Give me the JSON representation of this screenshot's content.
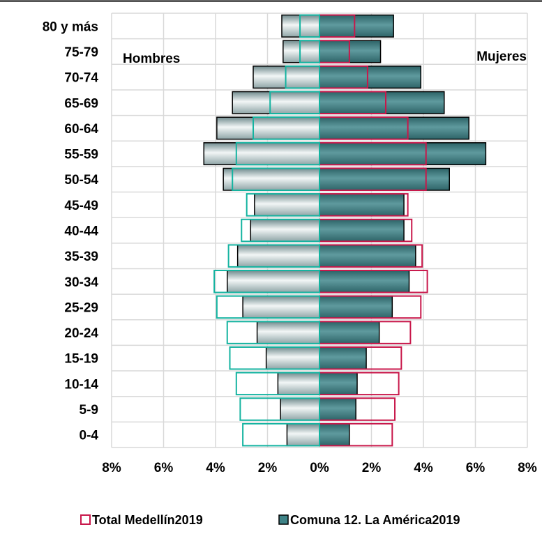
{
  "chart_data": {
    "type": "bar",
    "orientation": "horizontal",
    "categories": [
      "0-4",
      "5-9",
      "10-14",
      "15-19",
      "20-24",
      "25-29",
      "30-34",
      "35-39",
      "40-44",
      "45-49",
      "50-54",
      "55-59",
      "60-64",
      "65-69",
      "70-74",
      "75-79",
      "80 y más"
    ],
    "series": [
      {
        "name": "Total Medellín2019",
        "style": "outline",
        "male": [
          2.95,
          3.05,
          3.2,
          3.45,
          3.55,
          3.95,
          4.05,
          3.5,
          3.0,
          2.8,
          3.35,
          3.2,
          2.55,
          1.9,
          1.3,
          0.75,
          0.75
        ],
        "female": [
          2.8,
          2.9,
          3.05,
          3.15,
          3.5,
          3.9,
          4.15,
          3.95,
          3.55,
          3.4,
          4.1,
          4.1,
          3.4,
          2.55,
          1.85,
          1.15,
          1.35
        ]
      },
      {
        "name": "Comuna 12. La América2019",
        "style": "filled",
        "male": [
          1.25,
          1.5,
          1.6,
          2.05,
          2.4,
          2.95,
          3.55,
          3.15,
          2.65,
          2.5,
          3.7,
          4.45,
          3.95,
          3.35,
          2.55,
          1.4,
          1.45
        ],
        "female": [
          1.15,
          1.4,
          1.45,
          1.8,
          2.3,
          2.8,
          3.45,
          3.7,
          3.25,
          3.25,
          5.0,
          6.4,
          5.75,
          4.8,
          3.9,
          2.35,
          2.85
        ]
      }
    ],
    "x_ticks": [
      "8%",
      "6%",
      "4%",
      "2%",
      "0%",
      "2%",
      "4%",
      "6%",
      "8%"
    ],
    "xlim": [
      -8,
      8
    ],
    "grid": true,
    "annotations": [
      "Hombres",
      "Mujeres"
    ],
    "legend_position": "bottom",
    "colors": {
      "outline_female": "#c8174a",
      "outline_male": "#14b3a0",
      "filled_female": "#3f8387",
      "filled_male": "#b9c7c8",
      "bar_border": "#000000",
      "grid": "#d9d9d9"
    }
  }
}
